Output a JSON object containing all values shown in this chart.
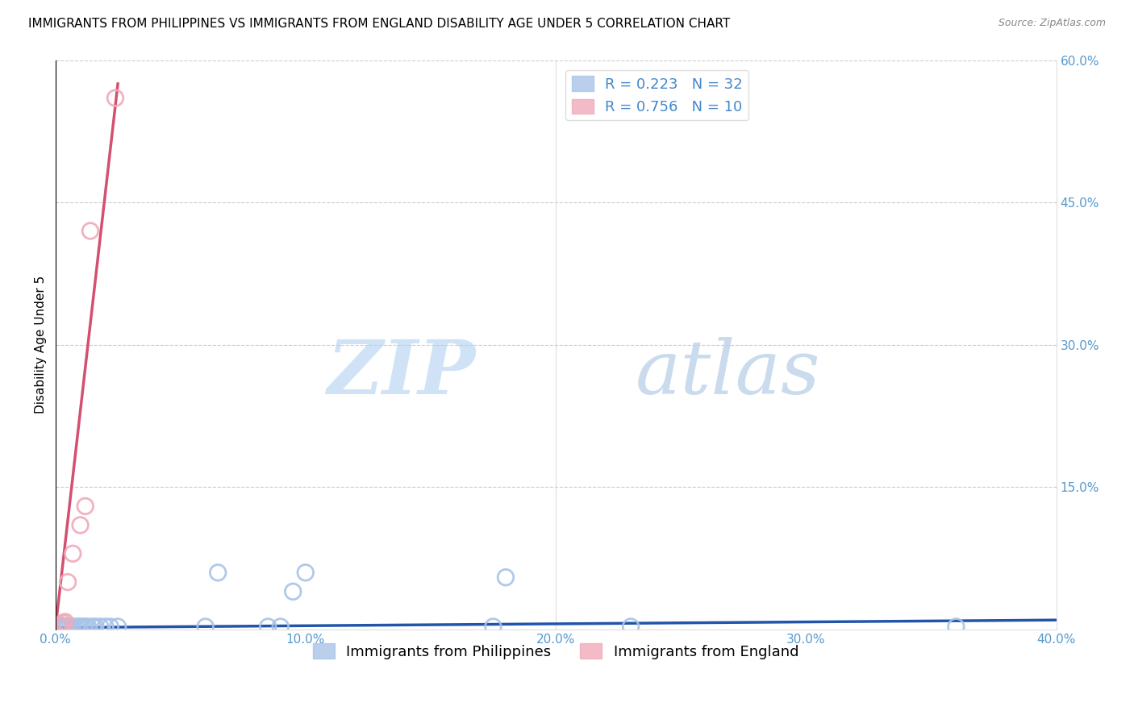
{
  "title": "IMMIGRANTS FROM PHILIPPINES VS IMMIGRANTS FROM ENGLAND DISABILITY AGE UNDER 5 CORRELATION CHART",
  "source": "Source: ZipAtlas.com",
  "ylabel": "Disability Age Under 5",
  "xlabel": "",
  "watermark_zip": "ZIP",
  "watermark_atlas": "atlas",
  "xlim": [
    0.0,
    0.4
  ],
  "ylim": [
    0.0,
    0.6
  ],
  "xticks": [
    0.0,
    0.1,
    0.2,
    0.3,
    0.4
  ],
  "yticks": [
    0.0,
    0.15,
    0.3,
    0.45,
    0.6
  ],
  "ytick_labels_left": [
    "",
    "",
    "",
    "",
    ""
  ],
  "ytick_labels_right": [
    "",
    "15.0%",
    "30.0%",
    "45.0%",
    "60.0%"
  ],
  "xtick_labels": [
    "0.0%",
    "10.0%",
    "20.0%",
    "30.0%",
    "40.0%"
  ],
  "philippines_color": "#a8c4e8",
  "england_color": "#f0aaba",
  "philippines_line_color": "#2255aa",
  "england_line_color": "#d45070",
  "R_philippines": 0.223,
  "N_philippines": 32,
  "R_england": 0.756,
  "N_england": 10,
  "philippines_x": [
    0.001,
    0.002,
    0.003,
    0.003,
    0.004,
    0.004,
    0.005,
    0.005,
    0.006,
    0.007,
    0.008,
    0.009,
    0.01,
    0.011,
    0.012,
    0.013,
    0.015,
    0.016,
    0.018,
    0.02,
    0.022,
    0.025,
    0.06,
    0.065,
    0.085,
    0.09,
    0.095,
    0.1,
    0.175,
    0.18,
    0.23,
    0.36
  ],
  "philippines_y": [
    0.003,
    0.003,
    0.003,
    0.003,
    0.003,
    0.003,
    0.003,
    0.003,
    0.003,
    0.003,
    0.003,
    0.003,
    0.003,
    0.003,
    0.003,
    0.003,
    0.003,
    0.003,
    0.003,
    0.003,
    0.003,
    0.003,
    0.003,
    0.06,
    0.003,
    0.003,
    0.04,
    0.06,
    0.003,
    0.055,
    0.003,
    0.003
  ],
  "england_x": [
    0.001,
    0.002,
    0.003,
    0.004,
    0.005,
    0.007,
    0.01,
    0.012,
    0.014,
    0.024
  ],
  "england_y": [
    0.003,
    0.005,
    0.007,
    0.008,
    0.05,
    0.08,
    0.11,
    0.13,
    0.42,
    0.56
  ],
  "phil_line_x": [
    0.0,
    0.4
  ],
  "phil_line_y": [
    0.002,
    0.01
  ],
  "eng_line_x": [
    0.0,
    0.025
  ],
  "eng_line_y": [
    0.0,
    0.575
  ],
  "title_fontsize": 11,
  "axis_label_fontsize": 11,
  "tick_fontsize": 11,
  "legend_fontsize": 13,
  "background_color": "#ffffff",
  "grid_color": "#cccccc"
}
